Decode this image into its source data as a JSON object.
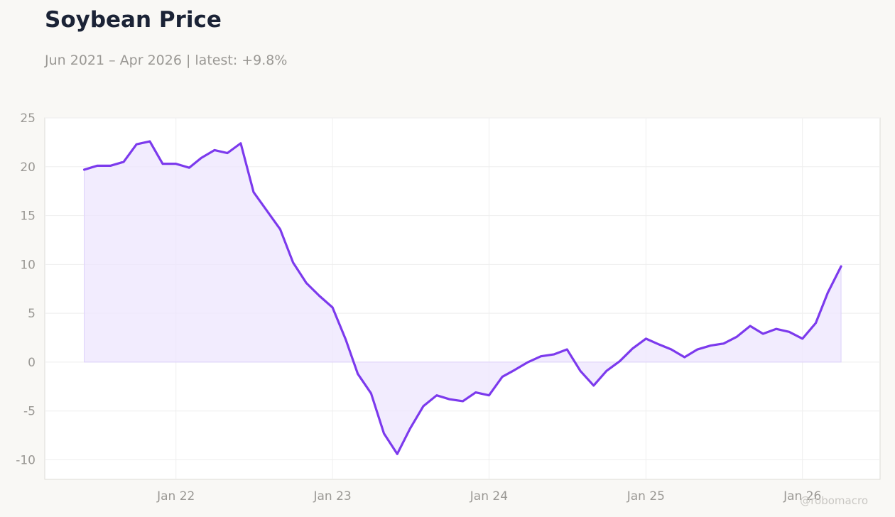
{
  "title": "Soybean Price",
  "subtitle": "Jun 2021 – Apr 2026 | latest: +9.8%",
  "watermark": "@robomacro",
  "colors": {
    "line": "#7c3aed",
    "fill": "#ede5fd",
    "grid": "#eeeeee",
    "text": "#9a9894",
    "title": "#1b2336",
    "plot_bg": "#ffffff",
    "page_bg": "#f9f8f5"
  },
  "chart_data": {
    "type": "area",
    "title": "Soybean Price",
    "xlabel": "",
    "ylabel": "",
    "ylim": [
      -12,
      25
    ],
    "yticks": [
      25,
      20,
      15,
      10,
      5,
      0,
      -5,
      -10
    ],
    "ytick_labels": [
      "25",
      "20",
      "15",
      "10",
      "5",
      "0",
      "-5",
      "-10"
    ],
    "xticks": [
      "2022-01-01",
      "2023-01-01",
      "2024-01-01",
      "2025-01-01",
      "2026-01-01"
    ],
    "xtick_labels": [
      "Jan 22",
      "Jan 23",
      "Jan 24",
      "Jan 25",
      "Jan 26"
    ],
    "xlim": [
      "2021-03-01",
      "2026-07-01"
    ],
    "grid": true,
    "legend": "none",
    "x": [
      "2021-06-01",
      "2021-07-01",
      "2021-08-01",
      "2021-09-01",
      "2021-10-01",
      "2021-11-01",
      "2021-12-01",
      "2022-01-01",
      "2022-02-01",
      "2022-03-01",
      "2022-04-01",
      "2022-05-01",
      "2022-06-01",
      "2022-07-01",
      "2022-08-01",
      "2022-09-01",
      "2022-10-01",
      "2022-11-01",
      "2022-12-01",
      "2023-01-01",
      "2023-02-01",
      "2023-03-01",
      "2023-04-01",
      "2023-05-01",
      "2023-06-01",
      "2023-07-01",
      "2023-08-01",
      "2023-09-01",
      "2023-10-01",
      "2023-11-01",
      "2023-12-01",
      "2024-01-01",
      "2024-02-01",
      "2024-03-01",
      "2024-04-01",
      "2024-05-01",
      "2024-06-01",
      "2024-07-01",
      "2024-08-01",
      "2024-09-01",
      "2024-10-01",
      "2024-11-01",
      "2024-12-01",
      "2025-01-01",
      "2025-02-01",
      "2025-03-01",
      "2025-04-01",
      "2025-05-01",
      "2025-06-01",
      "2025-07-01",
      "2025-08-01",
      "2025-09-01",
      "2025-10-01",
      "2025-11-01",
      "2025-12-01",
      "2026-01-01",
      "2026-02-01",
      "2026-03-01",
      "2026-04-01"
    ],
    "series": [
      {
        "values": [
          19.7,
          20.1,
          20.1,
          20.5,
          22.3,
          22.6,
          20.3,
          20.3,
          19.9,
          20.9,
          21.7,
          21.4,
          22.4,
          17.4,
          15.5,
          13.6,
          10.2,
          8.1,
          6.8,
          5.6,
          2.3,
          -1.2,
          -3.2,
          -7.3,
          -9.4,
          -6.8,
          -4.5,
          -3.4,
          -3.8,
          -4.0,
          -3.1,
          -3.4,
          -1.5,
          -0.8,
          0.0,
          0.6,
          0.8,
          1.3,
          -0.9,
          -2.4,
          -0.9,
          0.1,
          1.4,
          2.4,
          1.8,
          1.3,
          0.5,
          1.3,
          1.7,
          1.9,
          2.6,
          3.7,
          2.9,
          3.4,
          3.1,
          2.4,
          4.0,
          7.1,
          9.8
        ]
      }
    ]
  }
}
